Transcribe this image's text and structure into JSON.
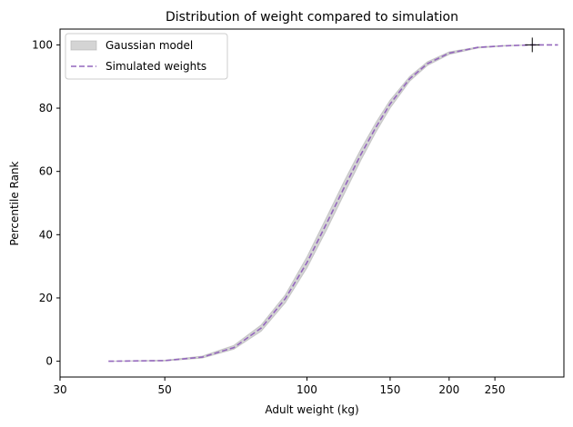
{
  "chart_data": {
    "type": "line",
    "title": "Distribution of weight compared to simulation",
    "xlabel": "Adult weight (kg)",
    "ylabel": "Percentile Rank",
    "xscale": "log",
    "xlim": [
      30,
      350
    ],
    "ylim": [
      -5,
      105
    ],
    "xticks": [
      30,
      50,
      100,
      150,
      200,
      250
    ],
    "xtick_labels": [
      "30",
      "50",
      "100",
      "150",
      "200",
      "250"
    ],
    "yticks": [
      0,
      20,
      40,
      60,
      80,
      100
    ],
    "ytick_labels": [
      "0",
      "20",
      "40",
      "60",
      "80",
      "100"
    ],
    "grid": false,
    "legend": {
      "placement": "upper-left",
      "entries": [
        {
          "label": "Gaussian model",
          "kind": "band",
          "color": "#b0b0b0"
        },
        {
          "label": "Simulated weights",
          "kind": "dashed-line",
          "color": "#9467bd"
        }
      ]
    },
    "series": [
      {
        "name": "Gaussian model",
        "kind": "band",
        "color": "#b0b0b0",
        "x": [
          38,
          50,
          60,
          70,
          80,
          90,
          100,
          110,
          120,
          130,
          140,
          150,
          165,
          180,
          200,
          230,
          260,
          300
        ],
        "lower": [
          0,
          0.1,
          1,
          3.8,
          9.5,
          18.5,
          29.5,
          41.5,
          53,
          63.5,
          72.5,
          80,
          88.5,
          93.5,
          97,
          99,
          99.6,
          100
        ],
        "upper": [
          0,
          0.3,
          1.6,
          5,
          11.5,
          21,
          33,
          45.5,
          57,
          67,
          75.5,
          82.5,
          90,
          94.7,
          97.8,
          99.3,
          99.8,
          100
        ]
      },
      {
        "name": "Simulated weights",
        "kind": "dashed-line",
        "color": "#9467bd",
        "x": [
          38,
          50,
          60,
          70,
          80,
          90,
          100,
          110,
          120,
          130,
          140,
          150,
          165,
          180,
          200,
          230,
          260,
          300,
          340
        ],
        "y": [
          0,
          0.2,
          1.3,
          4.3,
          10.5,
          19.8,
          31.2,
          43.5,
          55,
          65.3,
          74,
          81.3,
          89.3,
          94.1,
          97.4,
          99.2,
          99.7,
          100,
          100
        ]
      }
    ],
    "marker": {
      "x": 300,
      "y": 100,
      "symbol": "+",
      "color": "#000000"
    }
  }
}
